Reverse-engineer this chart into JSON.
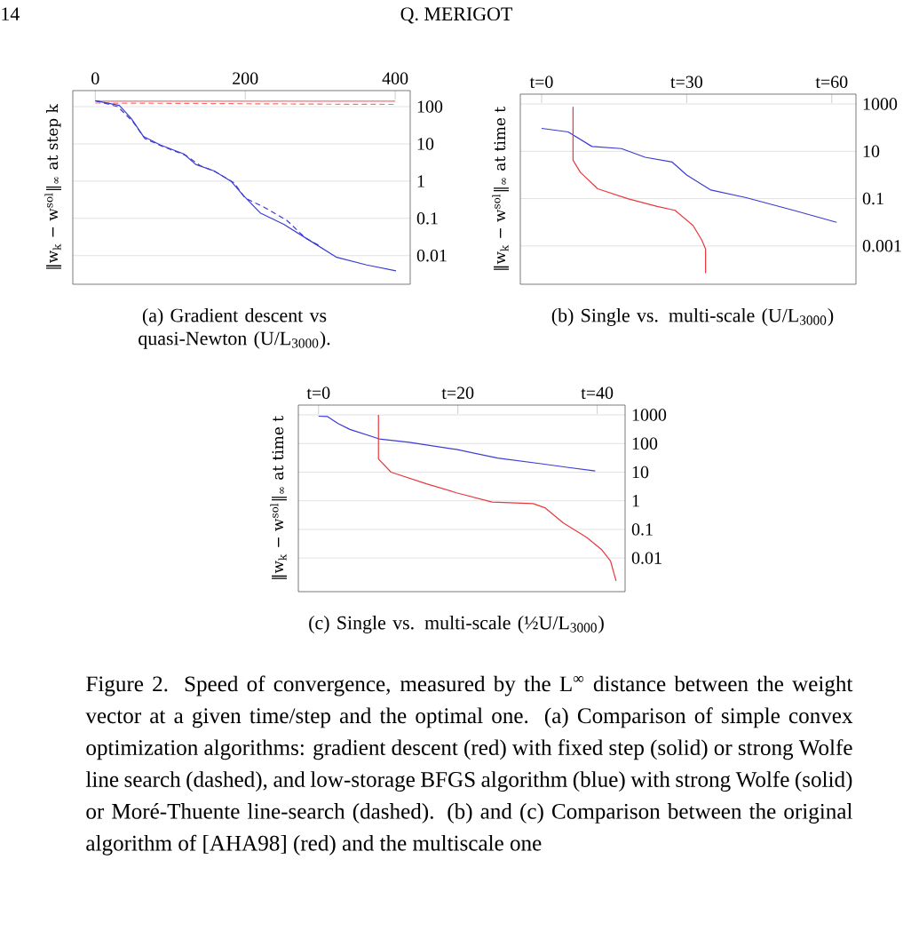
{
  "chart_data": [
    {
      "type": "line",
      "title": "(a) Gradient descent vs quasi-Newton (U/L$_{3000}$).",
      "ylabel": "‖w$_{k}$ − w$^{sol}$‖$_{∞}$ at step k",
      "log": "y",
      "grid": "y",
      "marker": "none",
      "xlim": [
        -30,
        420
      ],
      "xticks": [
        0,
        200,
        400
      ],
      "ylim": [
        0.0017,
        270
      ],
      "yticks": [
        100,
        10,
        1,
        0.1,
        0.01
      ],
      "series": [
        {
          "color": "#f07070",
          "line_style": "solid",
          "x": [
            0,
            400
          ],
          "values": [
            140,
            140
          ]
        },
        {
          "color": "#f07070",
          "line_style": "dashed",
          "x": [
            0,
            100,
            200,
            300,
            400
          ],
          "values": [
            125,
            123,
            120,
            117,
            115
          ]
        },
        {
          "color": "#3b3bd6",
          "line_style": "solid",
          "x": [
            0,
            32,
            48,
            64,
            87,
            118,
            134,
            158,
            181,
            197,
            220,
            252,
            291,
            322,
            362,
            401
          ],
          "values": [
            144,
            108,
            48,
            16,
            9.3,
            5.4,
            2.8,
            1.9,
            1.0,
            0.42,
            0.14,
            0.068,
            0.022,
            0.009,
            0.0056,
            0.0039
          ]
        },
        {
          "color": "#3b3bd6",
          "line_style": "dashed",
          "x": [
            0,
            30,
            50,
            66,
            90,
            120,
            140,
            160,
            185,
            200,
            225,
            255,
            280,
            300
          ],
          "values": [
            144,
            100,
            40,
            14,
            8.5,
            5,
            2.6,
            1.8,
            0.9,
            0.35,
            0.2,
            0.09,
            0.03,
            0.018
          ]
        }
      ]
    },
    {
      "type": "line",
      "title": "(b) Single vs. multi-scale (U/L$_{3000}$)",
      "ylabel": "‖w$_{k}$ − w$^{sol}$‖$_{∞}$ at time t",
      "log": "y",
      "grid": "y",
      "marker": "none",
      "xlim": [
        -4.4,
        65
      ],
      "xticks": [
        {
          "value": 0,
          "label": "t=0"
        },
        {
          "value": 30,
          "label": "t=30"
        },
        {
          "value": 60,
          "label": "t=60"
        }
      ],
      "ylim": [
        2.4e-05,
        2600
      ],
      "yticks": [
        1000,
        10,
        0.1,
        0.001
      ],
      "series": [
        {
          "color": "#3b3bd6",
          "line_style": "solid",
          "x": [
            0,
            5.5,
            10.4,
            16.5,
            21.4,
            27,
            30,
            35,
            42.3,
            52.1,
            61
          ],
          "values": [
            93,
            66,
            16,
            13,
            5.6,
            3.5,
            1,
            0.23,
            0.11,
            0.032,
            0.01
          ]
        },
        {
          "color": "#e8383d",
          "line_style": "solid",
          "x": [
            6.5,
            6.5,
            8,
            11.6,
            17.8,
            23.9,
            27.6,
            31.3,
            33.1,
            33.9,
            33.9
          ],
          "values": [
            750,
            4.2,
            1.3,
            0.26,
            0.1,
            0.047,
            0.032,
            0.0074,
            0.0018,
            0.00074,
            7e-05
          ]
        }
      ]
    },
    {
      "type": "line",
      "title": "(c) Single vs. multi-scale (½U/L$_{3000}$)",
      "ylabel": "‖w$_{k}$ − w$^{sol}$‖$_{∞}$ at time t",
      "log": "y",
      "grid": "y",
      "marker": "none",
      "xlim": [
        -2.9,
        44
      ],
      "xticks": [
        {
          "value": 0,
          "label": "t=0"
        },
        {
          "value": 20,
          "label": "t=20"
        },
        {
          "value": 40,
          "label": "t=40"
        }
      ],
      "ylim": [
        0.00067,
        2200
      ],
      "yticks": [
        1000,
        100,
        10,
        1,
        0.1,
        0.01
      ],
      "series": [
        {
          "color": "#3b3bd6",
          "line_style": "solid",
          "x": [
            0,
            1.3,
            2.8,
            4.5,
            8.7,
            13,
            19.8,
            25.7,
            31.7,
            35.9,
            39.7
          ],
          "values": [
            900,
            870,
            500,
            310,
            145,
            110,
            62,
            31,
            20,
            14.5,
            11
          ]
        },
        {
          "color": "#e8383d",
          "line_style": "solid",
          "x": [
            8.6,
            8.6,
            10.4,
            15.5,
            19.8,
            24.9,
            30.8,
            32.5,
            35.1,
            38.5,
            40.6,
            41.9,
            42.7
          ],
          "values": [
            1000,
            29,
            10,
            3.9,
            1.9,
            0.9,
            0.8,
            0.57,
            0.17,
            0.052,
            0.02,
            0.008,
            0.0016
          ]
        }
      ]
    },
    {
      "type": "other",
      "annotations": [
        "14",
        "Q. MERIGOT",
        "Figure 2. Speed of convergence, measured by the L$^{∞}$ distance between the weight vector at a given time/step and the optimal one. (a) Comparison of simple convex optimization algorithms: gradient descent (red) with fixed step (solid) or strong Wolfe line search (dashed), and low-storage BFGS algorithm (blue) with strong Wolfe (solid) or Moré-Thuente line-search (dashed). (b) and (c) Comparison between the original algorithm of [AHA98] (red) and the multiscale one"
      ]
    }
  ]
}
